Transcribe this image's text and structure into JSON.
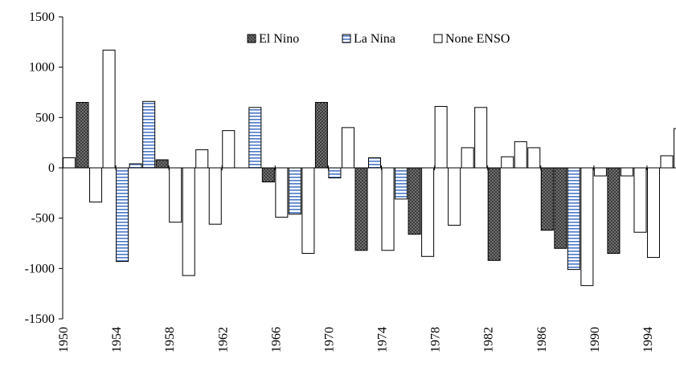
{
  "chart_data": {
    "type": "bar",
    "title": "",
    "xlabel": "",
    "ylabel": "",
    "ylim": [
      -1500,
      1500
    ],
    "yticks": [
      1500,
      1000,
      500,
      0,
      -500,
      -1000,
      -1500
    ],
    "xlim": [
      1950,
      1996
    ],
    "xticks": [
      1950,
      1954,
      1958,
      1962,
      1966,
      1970,
      1974,
      1978,
      1982,
      1986,
      1990,
      1994
    ],
    "legend_position": "top-center",
    "series": [
      {
        "name": "El Nino",
        "color": "#333333",
        "pattern": "dots",
        "x": [
          1951,
          1957,
          1965,
          1969,
          1972,
          1976,
          1982,
          1986,
          1987,
          1991
        ],
        "values": [
          650,
          80,
          -140,
          650,
          -820,
          -660,
          -920,
          -620,
          -800,
          -850
        ]
      },
      {
        "name": "La Nina",
        "color": "#4a78c8",
        "pattern": "horizontal-stripes",
        "x": [
          1954,
          1955,
          1956,
          1964,
          1967,
          1970,
          1973,
          1975,
          1988
        ],
        "values": [
          -930,
          40,
          660,
          600,
          -460,
          -100,
          100,
          -310,
          -1010
        ]
      },
      {
        "name": "None ENSO",
        "color": "#ffffff",
        "pattern": "none",
        "x": [
          1950,
          1952,
          1953,
          1958,
          1959,
          1960,
          1961,
          1962,
          1966,
          1968,
          1971,
          1974,
          1977,
          1978,
          1979,
          1980,
          1981,
          1983,
          1984,
          1985,
          1989,
          1990,
          1992,
          1993,
          1994,
          1995,
          1996
        ],
        "values": [
          100,
          -340,
          1170,
          -540,
          -1070,
          180,
          -560,
          370,
          -490,
          -850,
          400,
          -820,
          -880,
          610,
          -570,
          200,
          600,
          110,
          260,
          200,
          -1170,
          -80,
          -80,
          -640,
          -890,
          120,
          390
        ]
      }
    ]
  }
}
